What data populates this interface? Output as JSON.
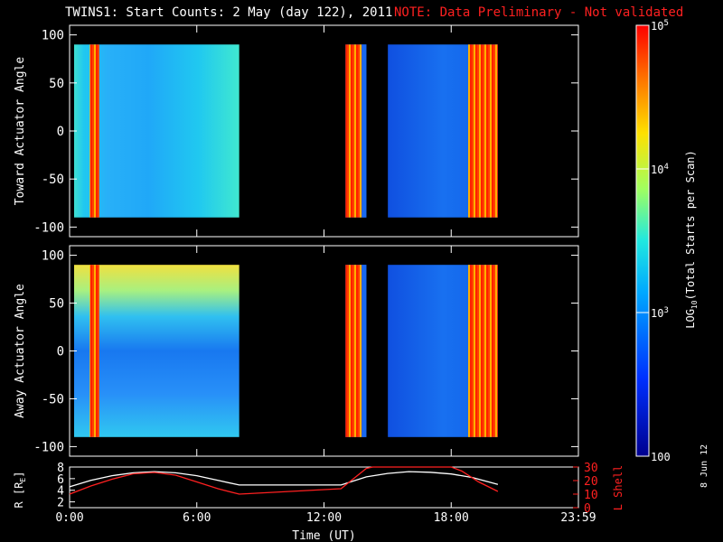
{
  "title": {
    "main": "TWINS1: Start Counts:  2 May (day 122), 2011",
    "note": "NOTE: Data Preliminary - Not validated"
  },
  "side_date": "8 Jun 12",
  "colors": {
    "note": "#ff2020",
    "frame": "#ffffff",
    "lshell": "#ff2020",
    "radius": "#ffffff"
  },
  "chart_data": [
    {
      "type": "heatmap",
      "name": "toward",
      "ylabel": "Toward Actuator Angle",
      "ylim": [
        -110,
        110
      ],
      "yticks": [
        100,
        50,
        0,
        -50,
        -100
      ],
      "xlim": [
        0,
        24
      ],
      "data_intervals_hours": [
        [
          0.0,
          8.0
        ],
        [
          12.8,
          14.0
        ],
        [
          14.8,
          20.2
        ]
      ],
      "value_range_log10": [
        2,
        5
      ]
    },
    {
      "type": "heatmap",
      "name": "away",
      "ylabel": "Away Actuator Angle",
      "ylim": [
        -110,
        110
      ],
      "yticks": [
        100,
        50,
        0,
        -50,
        -100
      ],
      "xlim": [
        0,
        24
      ],
      "data_intervals_hours": [
        [
          0.0,
          8.0
        ],
        [
          12.8,
          14.0
        ],
        [
          14.8,
          20.2
        ]
      ],
      "value_range_log10": [
        2,
        5
      ]
    },
    {
      "type": "line",
      "name": "orbit",
      "xlabel": "Time (UT)",
      "xticks": [
        "0:00",
        "6:00",
        "12:00",
        "18:00",
        "23:59"
      ],
      "ylabel_left": "R [R",
      "ylabel_left_sub": "E",
      "ylabel_left_end": "]",
      "ylabel_right": "L Shell",
      "yticks_left": [
        2,
        4,
        6,
        8
      ],
      "yticks_right": [
        0,
        10,
        20,
        30
      ],
      "ylim_left": [
        1,
        8
      ],
      "ylim_right": [
        0,
        30
      ],
      "series": [
        {
          "name": "R [RE]",
          "axis": "left",
          "x": [
            0,
            1,
            2,
            3,
            4,
            5,
            6,
            7,
            8,
            12.8,
            14,
            15,
            16,
            17,
            18,
            19,
            20.2
          ],
          "y": [
            4.6,
            5.7,
            6.5,
            7.0,
            7.2,
            7.0,
            6.5,
            5.7,
            4.9,
            4.9,
            6.3,
            6.9,
            7.2,
            7.1,
            6.8,
            6.2,
            5.0
          ]
        },
        {
          "name": "L Shell",
          "axis": "right",
          "x": [
            0,
            1,
            2,
            3,
            4,
            5,
            6,
            7,
            8,
            12.8,
            14,
            14.3,
            18,
            18.5,
            19.3,
            20.2
          ],
          "y": [
            10,
            16,
            21,
            25,
            26,
            24,
            19,
            14,
            10,
            14,
            29,
            31,
            31,
            27,
            19,
            12
          ]
        }
      ]
    }
  ],
  "colorbar": {
    "label_base": "LOG",
    "label_sub": "10",
    "label_rest": "(Total Starts per Scan)",
    "ticks": [
      {
        "value_log10": 5,
        "mantissa": "10",
        "exp": "5"
      },
      {
        "value_log10": 4,
        "mantissa": "10",
        "exp": "4"
      },
      {
        "value_log10": 3,
        "mantissa": "10",
        "exp": "3"
      },
      {
        "value_log10": 2,
        "mantissa": "100",
        "exp": ""
      }
    ]
  }
}
